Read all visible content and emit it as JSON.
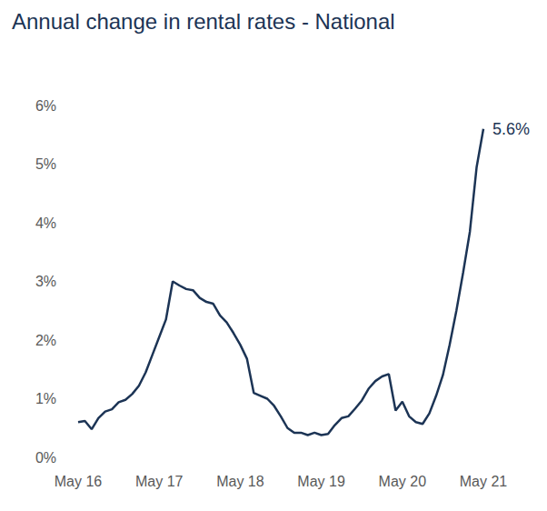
{
  "chart_data": {
    "type": "line",
    "title": "Annual change in rental rates - National",
    "color": "#1c3455",
    "grid": false,
    "categories": [
      "May 16",
      null,
      null,
      null,
      null,
      null,
      null,
      null,
      null,
      null,
      null,
      null,
      "May 17",
      null,
      null,
      null,
      null,
      null,
      null,
      null,
      null,
      null,
      null,
      null,
      "May 18",
      null,
      null,
      null,
      null,
      null,
      null,
      null,
      null,
      null,
      null,
      null,
      "May 19",
      null,
      null,
      null,
      null,
      null,
      null,
      null,
      null,
      null,
      null,
      null,
      "May 20",
      null,
      null,
      null,
      null,
      null,
      null,
      null,
      null,
      null,
      null,
      null,
      "May 21"
    ],
    "values": [
      0.6,
      0.62,
      0.48,
      0.67,
      0.78,
      0.82,
      0.94,
      0.98,
      1.08,
      1.22,
      1.45,
      1.75,
      2.05,
      2.35,
      3.0,
      2.93,
      2.87,
      2.85,
      2.72,
      2.65,
      2.62,
      2.42,
      2.3,
      2.12,
      1.92,
      1.68,
      1.1,
      1.05,
      1.0,
      0.88,
      0.7,
      0.5,
      0.42,
      0.42,
      0.38,
      0.42,
      0.38,
      0.4,
      0.55,
      0.67,
      0.7,
      0.83,
      0.97,
      1.17,
      1.3,
      1.38,
      1.42,
      0.8,
      0.95,
      0.7,
      0.6,
      0.57,
      0.75,
      1.05,
      1.4,
      1.92,
      2.5,
      3.15,
      3.85,
      4.95,
      5.6
    ],
    "ylim": [
      0,
      6
    ],
    "yticks": [
      {
        "value": 0,
        "label": "0%"
      },
      {
        "value": 1,
        "label": "1%"
      },
      {
        "value": 2,
        "label": "2%"
      },
      {
        "value": 3,
        "label": "3%"
      },
      {
        "value": 4,
        "label": "4%"
      },
      {
        "value": 5,
        "label": "5%"
      },
      {
        "value": 6,
        "label": "6%"
      }
    ],
    "annotations": [
      {
        "text": "5.6%",
        "x": "May 21",
        "y": 5.6
      }
    ]
  }
}
